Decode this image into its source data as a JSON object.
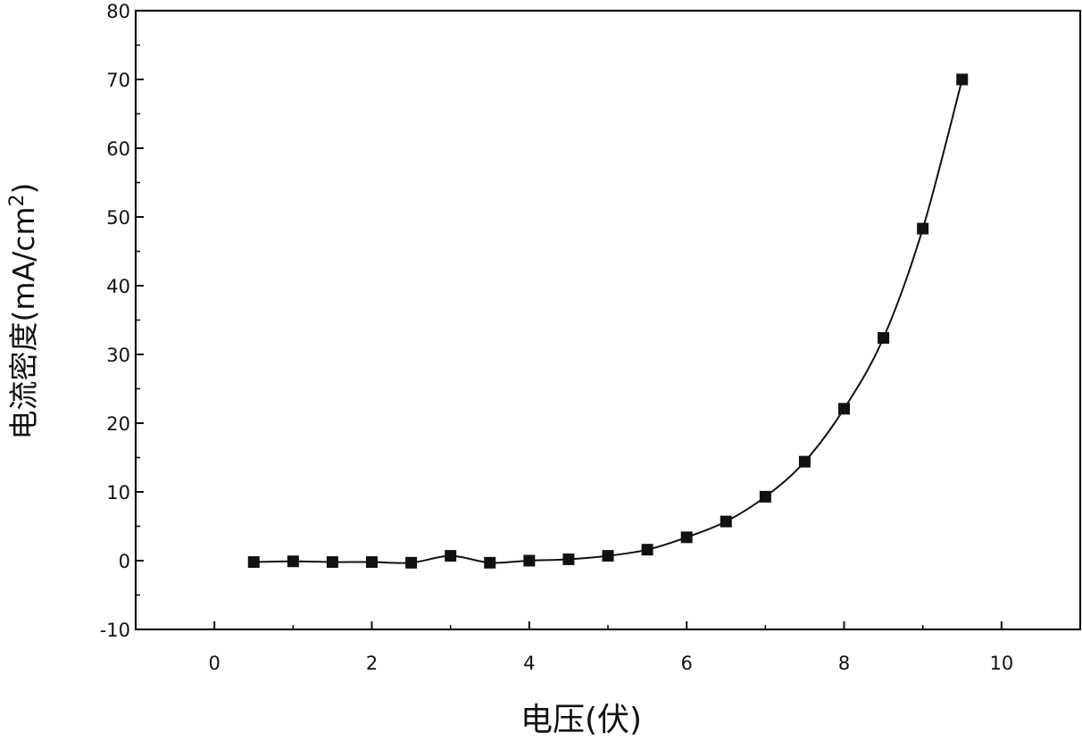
{
  "chart_data": {
    "type": "line",
    "title": "",
    "xlabel": "电压(伏)",
    "ylabel": "电流密度(mA/cm²)",
    "ylabel_prefix": "电流密度(mA/cm",
    "ylabel_sup": "2",
    "ylabel_suffix": ")",
    "xlim": [
      -1,
      11
    ],
    "ylim": [
      -10,
      80
    ],
    "x_ticks": [
      0,
      2,
      4,
      6,
      8,
      10
    ],
    "y_ticks": [
      -10,
      0,
      10,
      20,
      30,
      40,
      50,
      60,
      70,
      80
    ],
    "grid": false,
    "legend": "none",
    "marker": "square",
    "line_color": "#111111",
    "marker_color": "#111111",
    "series": [
      {
        "x": [
          0.5,
          1.0,
          1.5,
          2.0,
          2.5,
          3.0,
          3.5,
          4.0,
          4.5,
          5.0,
          5.5,
          6.0,
          6.5,
          7.0,
          7.5,
          8.0,
          8.5,
          9.0,
          9.5
        ],
        "y": [
          -0.2,
          -0.1,
          -0.2,
          -0.2,
          -0.3,
          0.7,
          -0.3,
          0.0,
          0.2,
          0.7,
          1.6,
          3.4,
          5.7,
          9.3,
          14.4,
          22.1,
          32.4,
          48.3,
          70.0
        ]
      }
    ]
  }
}
